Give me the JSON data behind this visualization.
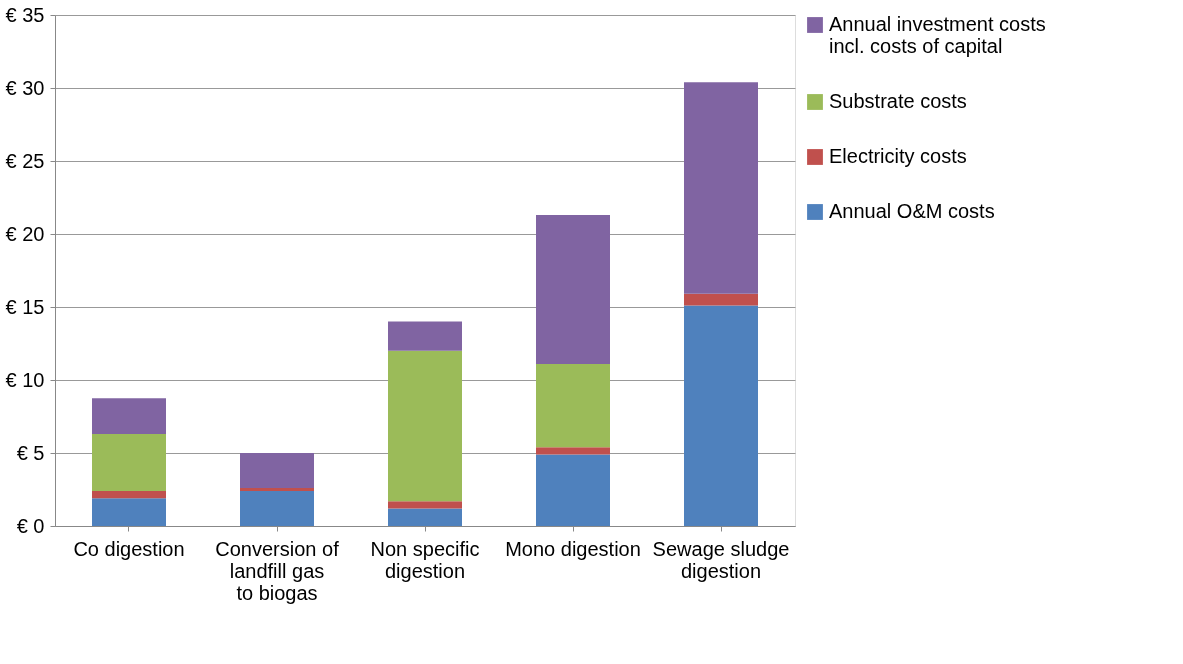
{
  "chart_data": {
    "type": "bar",
    "stacked": true,
    "categories": [
      "Co digestion",
      "Conversion of landfill gas to biogas",
      "Non specific digestion",
      "Mono digestion",
      "Sewage sludge digestion"
    ],
    "series": [
      {
        "name": "Annual O&M costs",
        "color": "#4f81bd",
        "values": [
          1.9,
          2.4,
          1.2,
          4.9,
          15.1
        ]
      },
      {
        "name": "Electricity costs",
        "color": "#c0504d",
        "values": [
          0.5,
          0.2,
          0.5,
          0.5,
          0.8
        ]
      },
      {
        "name": "Substrate costs",
        "color": "#9bbb59",
        "values": [
          3.9,
          0,
          10.3,
          5.7,
          0
        ]
      },
      {
        "name": "Annual investment costs incl. costs of capital",
        "color": "#8064a2",
        "values": [
          2.45,
          2.4,
          2.0,
          10.2,
          14.5
        ]
      }
    ],
    "ylim": [
      0,
      35
    ],
    "yticks": [
      {
        "value": 0,
        "label": "€ 0"
      },
      {
        "value": 5,
        "label": "€ 5"
      },
      {
        "value": 10,
        "label": "€ 10"
      },
      {
        "value": 15,
        "label": "€ 15"
      },
      {
        "value": 20,
        "label": "€ 20"
      },
      {
        "value": 25,
        "label": "€ 25"
      },
      {
        "value": 30,
        "label": "€ 30"
      },
      {
        "value": 35,
        "label": "€ 35"
      }
    ],
    "grid": "y",
    "legend": "right"
  }
}
